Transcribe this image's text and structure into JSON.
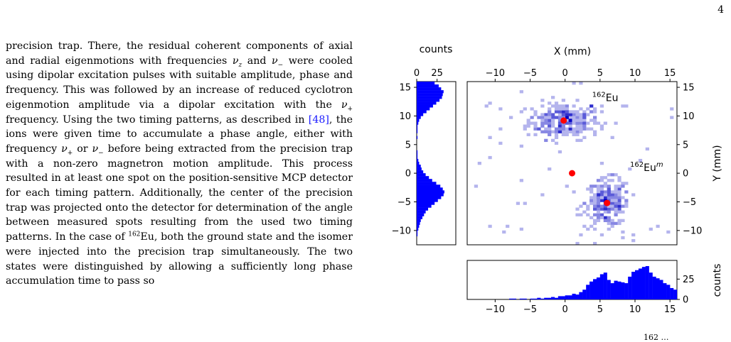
{
  "page_number": "4",
  "body_text": {
    "p1_a": "precision trap. There, the residual coherent components of axial and radial eigenmotions with frequencies ",
    "nu_z": "ν",
    "nu_z_sub": "z",
    "p1_b": " and ",
    "nu_minus": "ν",
    "nu_minus_sub": "−",
    "p1_c": " were cooled using dipolar excitation pulses with suitable amplitude, phase and frequency. This was followed by an increase of reduced cyclotron eigenmotion amplitude via a dipolar excitation with the ",
    "nu_plus": "ν",
    "nu_plus_sub": "+",
    "p1_d": " frequency. Using the two timing patterns, as described in ",
    "citation": "[48]",
    "p1_e": ", the ions were given time to accumulate a phase angle, either with frequency ",
    "nu_plus2": "ν",
    "nu_plus2_sub": "+",
    "p1_f": " or ",
    "nu_minus2": "ν",
    "nu_minus2_sub": "−",
    "p1_g": " before being extracted from the precision trap with a non-zero magnetron motion amplitude. This process resulted in at least one spot on the position-sensitive MCP detector for each timing pattern. Additionally, the center of the precision trap was projected onto the detector for determination of the angle between measured spots resulting from the used two timing patterns. In the case of ",
    "eu_mass": "162",
    "p1_h": "Eu, both the ground state and the isomer were injected into the precision trap simultaneously. The two states were distinguished by allowing a sufficiently long phase accumulation time to pass so"
  },
  "caption_fragment": "162 …",
  "chart_data": {
    "type": "heatmap",
    "title": "",
    "x_axis": {
      "label": "X (mm)",
      "range": [
        -14,
        16
      ],
      "ticks": [
        -10,
        -5,
        0,
        5,
        10,
        15
      ]
    },
    "y_axis": {
      "label": "Y (mm)",
      "range": [
        -12.5,
        16
      ],
      "ticks": [
        -10,
        -5,
        0,
        5,
        10,
        15
      ]
    },
    "grid": false,
    "clusters": [
      {
        "label_mass": "162",
        "label_symbol": "Eu",
        "label_superscript_suffix": "",
        "center_x": -0.2,
        "center_y": 9.2,
        "spread_x": 2.6,
        "spread_y": 1.6,
        "count": 260
      },
      {
        "label_mass": "162",
        "label_symbol": "Eu",
        "label_superscript_suffix": "m",
        "center_x": 6.0,
        "center_y": -5.2,
        "spread_x": 1.6,
        "spread_y": 2.1,
        "count": 240
      }
    ],
    "markers": [
      {
        "name": "ground-state-center",
        "x": -0.2,
        "y": 9.2,
        "color": "#ff0000"
      },
      {
        "name": "trap-center",
        "x": 1.0,
        "y": 0.0,
        "color": "#ff0000"
      },
      {
        "name": "isomer-center",
        "x": 6.0,
        "y": -5.2,
        "color": "#ff0000"
      }
    ],
    "colors": {
      "hist_fill": "#0000ff",
      "cmap_max": "#0000cc",
      "marker": "#ff0000"
    },
    "x_hist": {
      "label": "counts",
      "range": [
        0,
        48
      ],
      "ticks": [
        0,
        25
      ],
      "bin_start": -13.5,
      "bin_width": 0.5,
      "counts": [
        0,
        0,
        0,
        0,
        0,
        0,
        0,
        0,
        0,
        0,
        0,
        1,
        1,
        0,
        1,
        1,
        0,
        1,
        1,
        2,
        1,
        2,
        2,
        3,
        2,
        4,
        4,
        5,
        5,
        7,
        6,
        9,
        12,
        18,
        22,
        25,
        27,
        31,
        33,
        24,
        20,
        23,
        22,
        21,
        20,
        28,
        34,
        36,
        38,
        40,
        41,
        33,
        28,
        26,
        24,
        20,
        18,
        14,
        12,
        9,
        8,
        6,
        5,
        3,
        3,
        2,
        1,
        1,
        1,
        0,
        0
      ]
    },
    "y_hist": {
      "label": "counts",
      "range": [
        0,
        48
      ],
      "ticks": [
        0,
        25
      ],
      "bin_start": -12.5,
      "bin_width": 0.5,
      "counts": [
        0,
        0,
        0,
        1,
        1,
        2,
        3,
        4,
        5,
        7,
        9,
        11,
        14,
        18,
        22,
        26,
        30,
        33,
        34,
        32,
        29,
        24,
        19,
        15,
        11,
        8,
        6,
        5,
        3,
        2,
        1,
        1,
        1,
        0,
        0,
        0,
        0,
        1,
        0,
        1,
        1,
        1,
        2,
        3,
        5,
        8,
        12,
        16,
        20,
        24,
        28,
        31,
        32,
        33,
        30,
        27,
        22,
        17,
        13,
        9,
        6,
        4,
        3,
        2,
        1,
        1,
        1,
        0,
        0,
        0,
        0,
        0,
        0,
        0,
        0,
        0,
        0,
        0,
        0,
        0,
        0,
        0,
        0,
        0,
        0,
        0,
        0,
        0,
        0,
        0
      ]
    }
  }
}
